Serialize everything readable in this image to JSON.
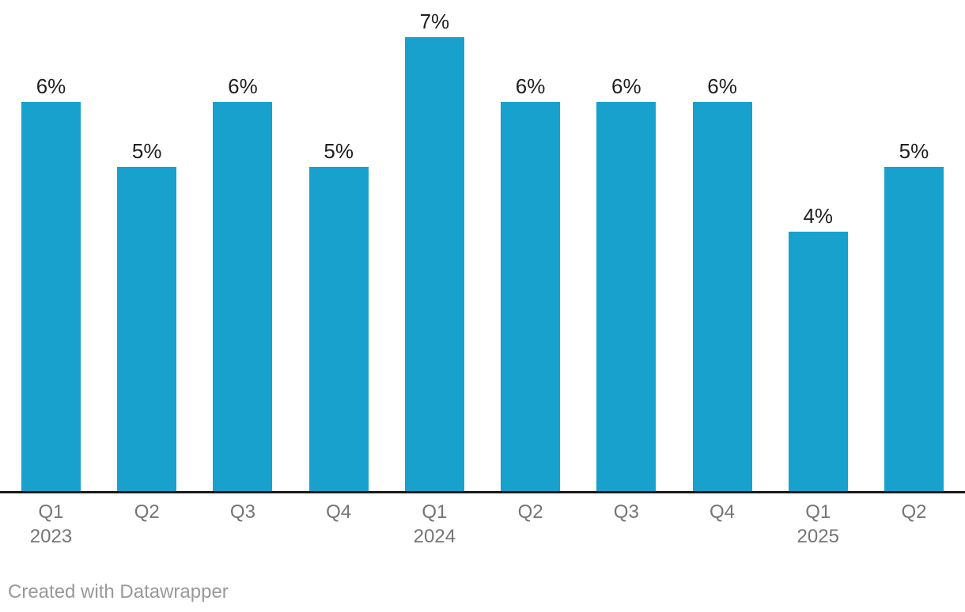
{
  "chart_data": {
    "type": "bar",
    "title": "",
    "xlabel": "",
    "ylabel": "",
    "categories": [
      "Q1 2023",
      "Q2 2023",
      "Q3 2023",
      "Q4 2023",
      "Q1 2024",
      "Q2 2024",
      "Q3 2024",
      "Q4 2024",
      "Q1 2025",
      "Q2 2025"
    ],
    "values": [
      6,
      5,
      6,
      5,
      7,
      6,
      6,
      6,
      4,
      5
    ],
    "value_labels": [
      "6%",
      "5%",
      "6%",
      "5%",
      "7%",
      "6%",
      "6%",
      "6%",
      "4%",
      "5%"
    ],
    "x_tick_lines": [
      [
        "Q1",
        "2023"
      ],
      [
        "Q2"
      ],
      [
        "Q3"
      ],
      [
        "Q4"
      ],
      [
        "Q1",
        "2024"
      ],
      [
        "Q2"
      ],
      [
        "Q3"
      ],
      [
        "Q4"
      ],
      [
        "Q1",
        "2025"
      ],
      [
        "Q2"
      ]
    ],
    "ylim": [
      0,
      7.5
    ],
    "grid": false,
    "legend_position": "none",
    "unit": "percent",
    "bar_color": "#18a1cd",
    "value_label_color": "#1f1f1f",
    "tick_label_color": "#757575",
    "axis_line_color": "#1a1a1a",
    "background_color": "#ffffff"
  },
  "footer": {
    "attribution": "Created with Datawrapper",
    "attribution_color": "#999999"
  }
}
